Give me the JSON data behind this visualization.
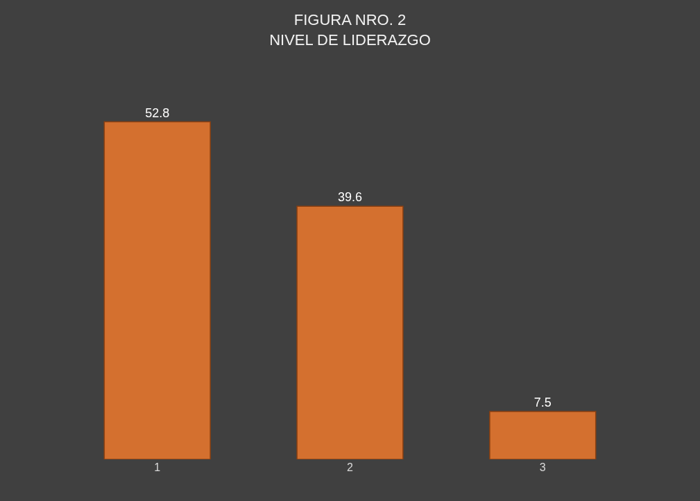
{
  "chart_data": {
    "type": "bar",
    "title": "FIGURA NRO. 2\nNIVEL DE LIDERAZGO",
    "categories": [
      "1",
      "2",
      "3"
    ],
    "values": [
      52.8,
      39.6,
      7.5
    ],
    "color": "#d4702f",
    "data_labels": true,
    "grid": false,
    "legend": false
  }
}
